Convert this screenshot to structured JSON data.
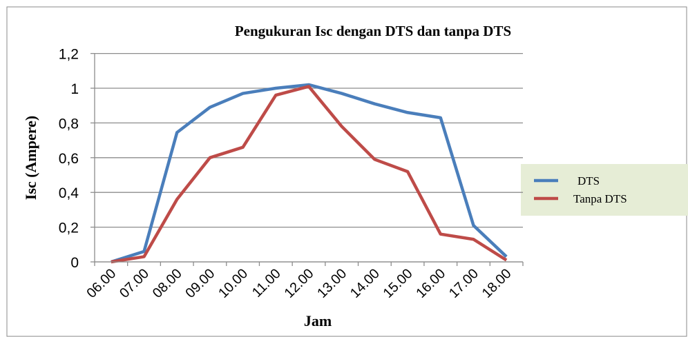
{
  "chart_data": {
    "type": "line",
    "title": "Pengukuran Isc dengan DTS dan tanpa DTS",
    "xlabel": "Jam",
    "ylabel": "Isc (Ampere)",
    "categories": [
      "06.00",
      "07.00",
      "08.00",
      "09.00",
      "10.00",
      "11.00",
      "12.00",
      "13.00",
      "14.00",
      "15.00",
      "16.00",
      "17.00",
      "18.00"
    ],
    "series": [
      {
        "name": "DTS",
        "color": "#4a7ebb",
        "values": [
          0,
          0.06,
          0.745,
          0.89,
          0.97,
          1.0,
          1.02,
          0.97,
          0.91,
          0.86,
          0.83,
          0.21,
          0.03
        ]
      },
      {
        "name": "Tanpa DTS",
        "color": "#be4b48",
        "values": [
          0,
          0.03,
          0.36,
          0.6,
          0.66,
          0.96,
          1.01,
          0.78,
          0.59,
          0.52,
          0.16,
          0.13,
          0.01
        ]
      }
    ],
    "ylim": [
      0,
      1.2
    ],
    "yticks": [
      0,
      {
        "value": 0.2,
        "label": "0,2"
      },
      {
        "value": 0.4,
        "label": "0,4"
      },
      {
        "value": 0.6,
        "label": "0,6"
      },
      {
        "value": 0.8,
        "label": "0,8"
      },
      1,
      {
        "value": 1.2,
        "label": "1,2"
      }
    ],
    "grid": true,
    "legend": "right"
  }
}
